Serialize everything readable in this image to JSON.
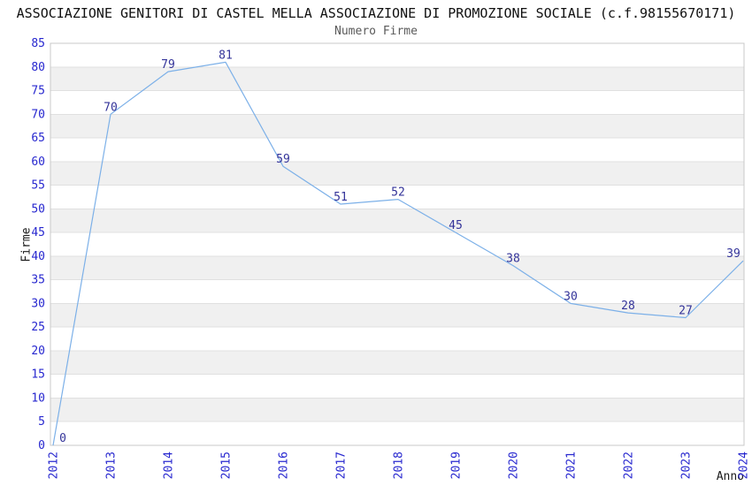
{
  "chart_data": {
    "type": "line",
    "title": "ASSOCIAZIONE GENITORI DI CASTEL MELLA ASSOCIAZIONE DI PROMOZIONE SOCIALE (c.f.98155670171)",
    "subtitle": "Numero Firme",
    "xlabel": "Anno",
    "ylabel": "Firme",
    "categories": [
      "2012",
      "2013",
      "2014",
      "2015",
      "2016",
      "2017",
      "2018",
      "2019",
      "2020",
      "2021",
      "2022",
      "2023",
      "2024"
    ],
    "series": [
      {
        "name": "Numero Firme",
        "values": [
          0,
          70,
          79,
          81,
          59,
          51,
          52,
          45,
          38,
          30,
          28,
          27,
          39
        ]
      }
    ],
    "point_labels": [
      "0",
      "70",
      "79",
      "81",
      "59",
      "51",
      "52",
      "45",
      "38",
      "30",
      "28",
      "27",
      "39"
    ],
    "ylim": [
      0,
      85
    ],
    "yticks": [
      0,
      5,
      10,
      15,
      20,
      25,
      30,
      35,
      40,
      45,
      50,
      55,
      60,
      65,
      70,
      75,
      80,
      85
    ],
    "grid": "horizontal stripes: alternating white / light-gray bands every 5 units, thin gridline at each tick, no vertical gridlines",
    "legend_position": "none",
    "x_tick_rotation": -90,
    "colors": {
      "line": "#7cb0e8",
      "point_label": "#333399",
      "tick_label": "#2727cf",
      "title": "#111111",
      "subtitle": "#5a5a5a",
      "axis_label": "#1a1a1a",
      "stripe": "#f0f0f0",
      "gridline": "#e0e0e0",
      "border": "#c8c8c8",
      "background": "#ffffff"
    }
  }
}
